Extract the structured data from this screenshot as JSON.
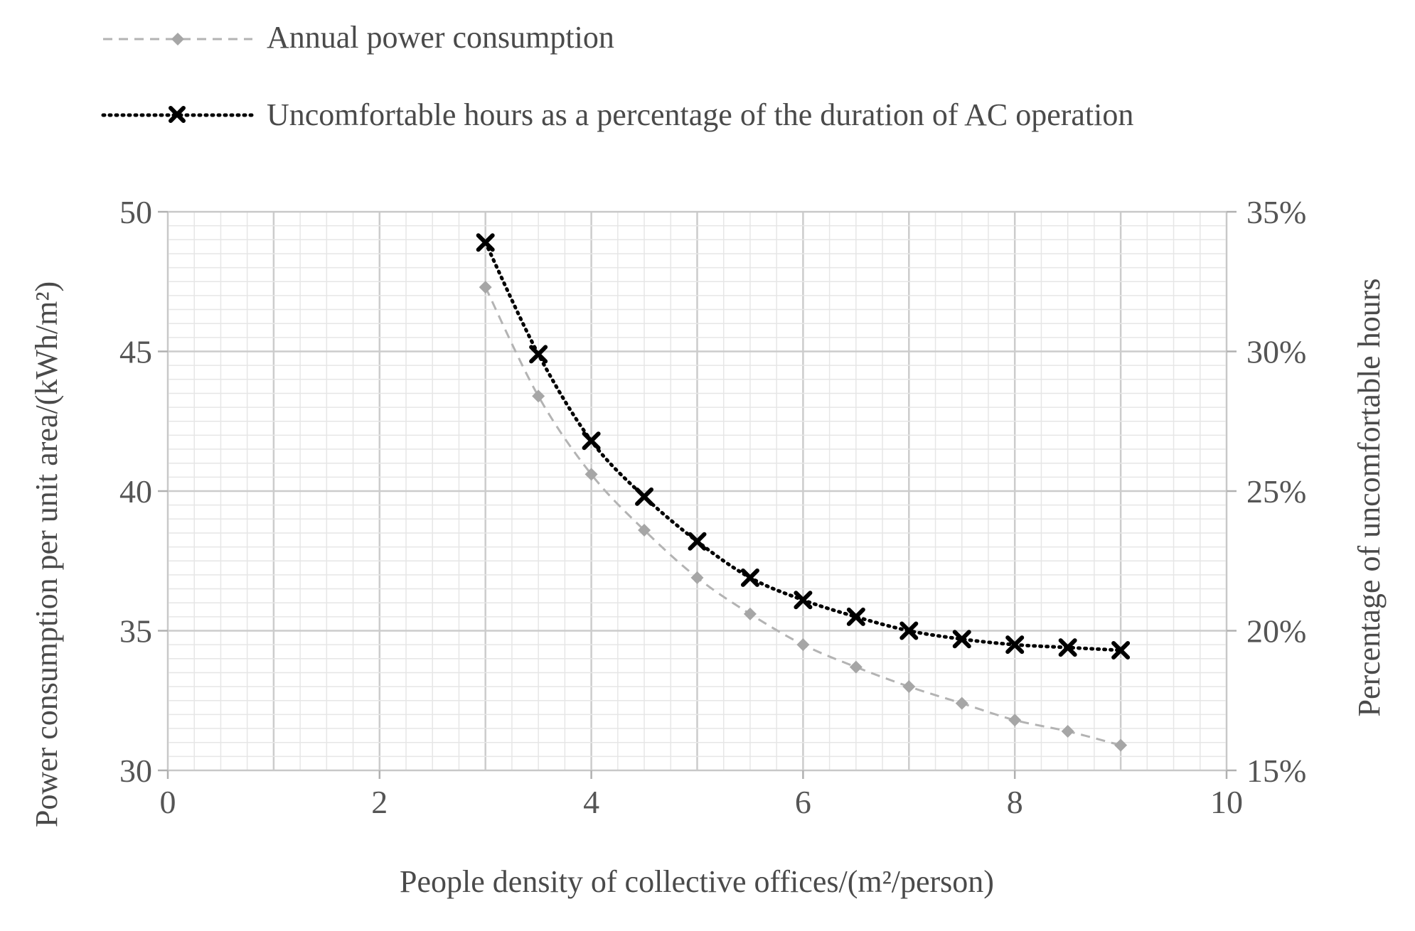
{
  "chart_data": {
    "type": "line",
    "title": "",
    "xlabel": "People density of collective offices/(m²/person)",
    "ylabel": "Power consumption per unit area/(kWh/m²)",
    "y2label": "Percentage of uncomfortable hours",
    "xlim": [
      0,
      10
    ],
    "ylim": [
      30,
      50
    ],
    "y2lim": [
      0.15,
      0.35
    ],
    "x_ticks": [
      0,
      2,
      4,
      6,
      8,
      10
    ],
    "x_tick_labels": [
      "0",
      "2",
      "4",
      "6",
      "8",
      "10"
    ],
    "y_ticks": [
      30,
      35,
      40,
      45,
      50
    ],
    "y_tick_labels": [
      "30",
      "35",
      "40",
      "45",
      "50"
    ],
    "y2_ticks": [
      0.15,
      0.2,
      0.25,
      0.3,
      0.35
    ],
    "y2_tick_labels": [
      "15%",
      "20%",
      "25%",
      "30%",
      "35%"
    ],
    "grid": true,
    "legend_position": "top",
    "x": [
      3,
      3.5,
      4,
      4.5,
      5,
      5.5,
      6,
      6.5,
      7,
      7.5,
      8,
      8.5,
      9
    ],
    "series": [
      {
        "name": "Annual power consumption",
        "axis": "left",
        "style": "dashed-diamond",
        "color": "#a6a6a6",
        "values": [
          47.3,
          43.4,
          40.6,
          38.6,
          36.9,
          35.6,
          34.5,
          33.7,
          33.0,
          32.4,
          31.8,
          31.4,
          30.9
        ]
      },
      {
        "name": "Uncomfortable hours as a percentage of the duration of AC operation",
        "axis": "right",
        "style": "dotted-cross",
        "color": "#000000",
        "values": [
          0.339,
          0.299,
          0.268,
          0.248,
          0.232,
          0.219,
          0.211,
          0.205,
          0.2,
          0.197,
          0.195,
          0.194,
          0.193
        ]
      }
    ]
  }
}
